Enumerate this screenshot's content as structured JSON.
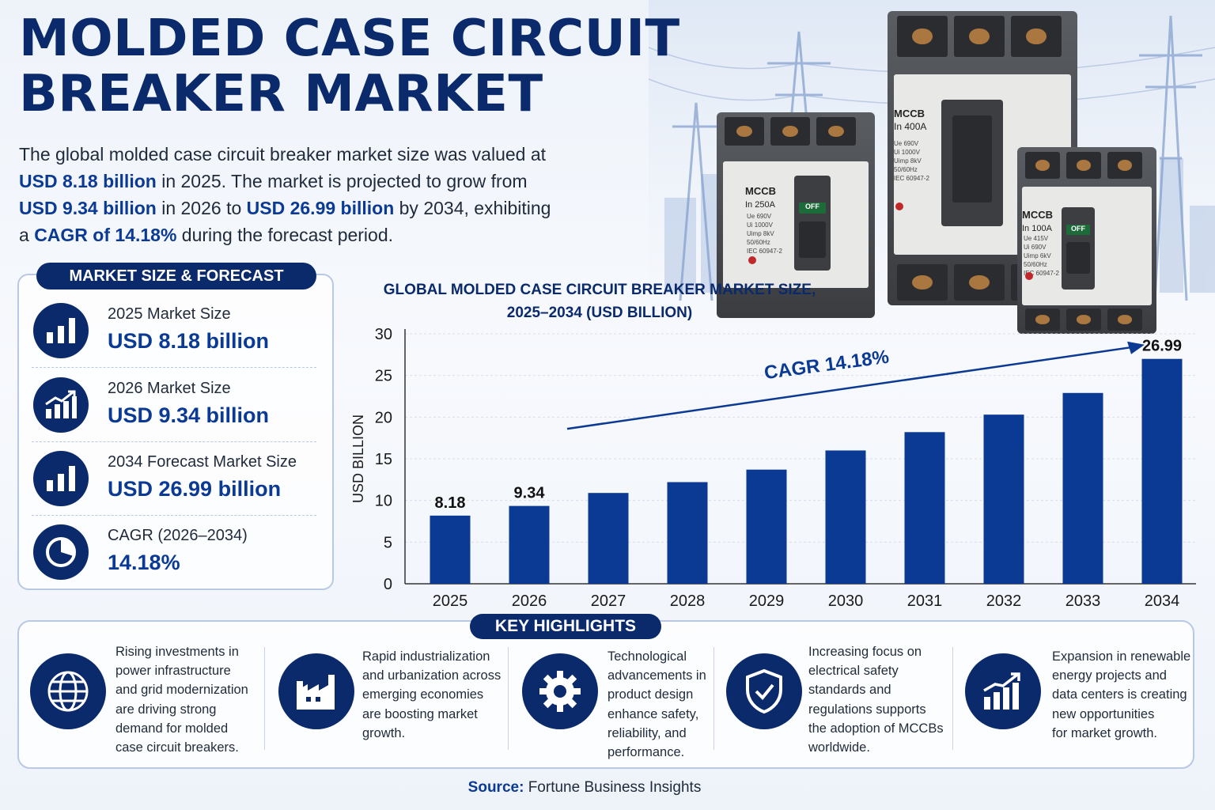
{
  "title": "MOLDED CASE CIRCUIT BREAKER MARKET",
  "intro": {
    "p1": "The global molded case circuit breaker market size was valued at",
    "v2025": "USD 8.18 billion",
    "p2": "in 2025. The market is projected to grow from",
    "v2026": "USD 9.34 billion",
    "p3": "in 2026 to",
    "v2034": "USD 26.99 billion",
    "p4": "by 2034, exhibiting",
    "p5": "a",
    "cagr": "CAGR of 14.18%",
    "p6": "during the forecast period."
  },
  "products": {
    "small": {
      "name": "MCCB",
      "rating": "In 250A",
      "specs": [
        "Ue   690V",
        "Ui   1000V",
        "Uimp  8kV",
        "50/60Hz",
        "IEC 60947-2"
      ],
      "switch": "OFF"
    },
    "large": {
      "name": "MCCB",
      "rating": "In 400A",
      "specs": [
        "Ue   690V",
        "Ui   1000V",
        "Uimp  8kV",
        "50/60Hz",
        "IEC 60947-2"
      ]
    },
    "right": {
      "name": "MCCB",
      "rating": "In 100A",
      "specs": [
        "Ue   415V",
        "Ui   690V",
        "Uimp 6kV",
        "50/60Hz",
        "IEC 60947-2"
      ],
      "switch": "OFF"
    }
  },
  "panel": {
    "heading": "MARKET SIZE & FORECAST",
    "stats": [
      {
        "label": "2025 Market Size",
        "value": "USD 8.18 billion",
        "icon": "bar-chart-icon"
      },
      {
        "label": "2026 Market Size",
        "value": "USD 9.34 billion",
        "icon": "growth-chart-icon"
      },
      {
        "label": "2034 Forecast Market Size",
        "value": "USD 26.99 billion",
        "icon": "bar-chart-icon"
      },
      {
        "label": "CAGR (2026–2034)",
        "value": "14.18%",
        "icon": "pie-chart-icon"
      }
    ]
  },
  "chart_data": {
    "type": "bar",
    "title": "GLOBAL MOLDED CASE CIRCUIT BREAKER MARKET SIZE, 2025–2034 (USD BILLION)",
    "ylabel": "USD BILLION",
    "xlabel": "",
    "categories": [
      "2025",
      "2026",
      "2027",
      "2028",
      "2029",
      "2030",
      "2031",
      "2032",
      "2033",
      "2034"
    ],
    "values": [
      8.18,
      9.34,
      10.9,
      12.2,
      13.7,
      16.0,
      18.2,
      20.3,
      22.9,
      26.99
    ],
    "data_labels": [
      "8.18",
      "9.34",
      "",
      "",
      "",
      "",
      "",
      "",
      "",
      "26.99"
    ],
    "ylim": [
      0,
      30
    ],
    "yticks": [
      "0",
      "5",
      "10",
      "15",
      "20",
      "25",
      "30"
    ],
    "annotation": "CAGR 14.18%",
    "bar_color": "#0b3a94",
    "grid": true
  },
  "highlights": {
    "heading": "KEY HIGHLIGHTS",
    "items": [
      {
        "icon": "globe-icon",
        "lines": [
          "Rising investments in",
          "power infrastructure",
          "and grid modernization",
          "are driving strong",
          "demand for molded",
          "case circuit breakers."
        ]
      },
      {
        "icon": "factory-icon",
        "lines": [
          "Rapid industrialization",
          "and urbanization across",
          "emerging economies",
          "are boosting market",
          "growth."
        ]
      },
      {
        "icon": "gear-icon",
        "lines": [
          "Technological",
          "advancements in",
          "product design",
          "enhance safety,",
          "reliability, and",
          "performance."
        ]
      },
      {
        "icon": "shield-check-icon",
        "lines": [
          "Increasing focus on",
          "electrical safety",
          "standards and",
          "regulations supports",
          "the adoption of MCCBs",
          "worldwide."
        ]
      },
      {
        "icon": "trend-up-icon",
        "lines": [
          "Expansion in renewable",
          "energy projects and",
          "data centers is creating",
          "new opportunities",
          "for market growth."
        ]
      }
    ]
  },
  "source": {
    "label": "Source:",
    "text": "Fortune Business Insights"
  },
  "colors": {
    "navy": "#0b2a6b",
    "accent": "#0b3a94",
    "border": "#b9c8e4"
  }
}
